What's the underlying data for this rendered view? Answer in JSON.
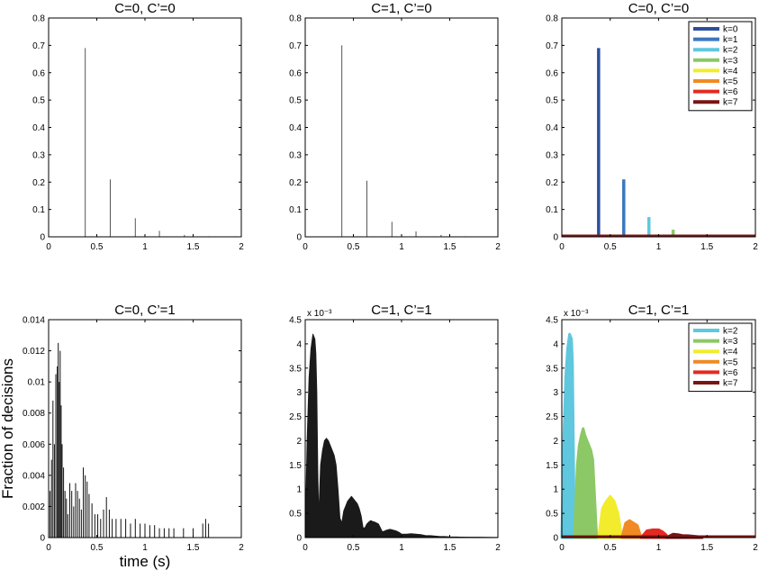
{
  "chart_data": [
    {
      "id": "p1",
      "type": "bar",
      "title": "C=0, C’=0",
      "xlim": [
        0,
        2
      ],
      "ylim": [
        0,
        0.8
      ],
      "xticks": [
        0,
        0.5,
        1,
        1.5,
        2
      ],
      "xtick_labels": [
        "0",
        "0.5",
        "1",
        "1.5",
        "2"
      ],
      "yticks": [
        0,
        0.1,
        0.2,
        0.3,
        0.4,
        0.5,
        0.6,
        0.7,
        0.8
      ],
      "ytick_labels": [
        "0",
        "0.1",
        "0.2",
        "0.3",
        "0.4",
        "0.5",
        "0.6",
        "0.7",
        "0.8"
      ],
      "series": [
        {
          "color": "#555555",
          "x": [
            0.38,
            0.64,
            0.9,
            1.15,
            1.41,
            1.66
          ],
          "values": [
            0.69,
            0.21,
            0.068,
            0.022,
            0.007,
            0.002
          ]
        }
      ]
    },
    {
      "id": "p2",
      "type": "bar",
      "title": "C=1, C’=0",
      "xlim": [
        0,
        2
      ],
      "ylim": [
        0,
        0.8
      ],
      "xticks": [
        0,
        0.5,
        1,
        1.5,
        2
      ],
      "xtick_labels": [
        "0",
        "0.5",
        "1",
        "1.5",
        "2"
      ],
      "yticks": [
        0,
        0.1,
        0.2,
        0.3,
        0.4,
        0.5,
        0.6,
        0.7,
        0.8
      ],
      "ytick_labels": [
        "0",
        "0.1",
        "0.2",
        "0.3",
        "0.4",
        "0.5",
        "0.6",
        "0.7",
        "0.8"
      ],
      "series": [
        {
          "color": "#555555",
          "x": [
            0.38,
            0.64,
            0.9,
            1.15,
            1.41,
            1.66
          ],
          "values": [
            0.7,
            0.205,
            0.055,
            0.02,
            0.007,
            0.002
          ]
        }
      ]
    },
    {
      "id": "p3",
      "type": "bar",
      "title": "C=0, C’=0",
      "xlim": [
        0,
        2
      ],
      "ylim": [
        0,
        0.8
      ],
      "xticks": [
        0,
        0.5,
        1,
        1.5,
        2
      ],
      "xtick_labels": [
        "0",
        "0.5",
        "1",
        "1.5",
        "2"
      ],
      "yticks": [
        0,
        0.1,
        0.2,
        0.3,
        0.4,
        0.5,
        0.6,
        0.7,
        0.8
      ],
      "ytick_labels": [
        "0",
        "0.1",
        "0.2",
        "0.3",
        "0.4",
        "0.5",
        "0.6",
        "0.7",
        "0.8"
      ],
      "legend": "top-right",
      "series": [
        {
          "name": "k=0",
          "color": "#2b4f9e",
          "x": [
            0.38
          ],
          "values": [
            0.69
          ]
        },
        {
          "name": "k=1",
          "color": "#3a78bd",
          "x": [
            0.64
          ],
          "values": [
            0.21
          ]
        },
        {
          "name": "k=2",
          "color": "#5fc7de",
          "x": [
            0.9
          ],
          "values": [
            0.072
          ]
        },
        {
          "name": "k=3",
          "color": "#8cc866",
          "x": [
            1.15
          ],
          "values": [
            0.026
          ]
        },
        {
          "name": "k=4",
          "color": "#f2ec2d",
          "x": [
            1.41
          ],
          "values": [
            0.008
          ]
        },
        {
          "name": "k=5",
          "color": "#f08a24",
          "x": [
            1.66
          ],
          "values": [
            0.003
          ]
        },
        {
          "name": "k=6",
          "color": "#e32a22",
          "x": [
            1.9
          ],
          "values": [
            0.001
          ]
        },
        {
          "name": "k=7",
          "color": "#7a1414",
          "x": [],
          "values": []
        }
      ]
    },
    {
      "id": "p4",
      "type": "bar",
      "title": "C=0, C’=1",
      "xlim": [
        0,
        2
      ],
      "ylim": [
        0,
        0.014
      ],
      "xticks": [
        0,
        0.5,
        1,
        1.5,
        2
      ],
      "xtick_labels": [
        "0",
        "0.5",
        "1",
        "1.5",
        "2"
      ],
      "yticks": [
        0,
        0.002,
        0.004,
        0.006,
        0.008,
        0.01,
        0.012,
        0.014
      ],
      "ytick_labels": [
        "0",
        "0.002",
        "0.004",
        "0.006",
        "0.008",
        "0.01",
        "0.012",
        "0.014"
      ],
      "xlabel": "time (s)",
      "ylabel": "Fraction of decisions",
      "series": [
        {
          "color": "#111111",
          "x": [
            0.0,
            0.015,
            0.03,
            0.045,
            0.06,
            0.075,
            0.09,
            0.1,
            0.11,
            0.12,
            0.13,
            0.14,
            0.155,
            0.17,
            0.185,
            0.2,
            0.22,
            0.24,
            0.26,
            0.28,
            0.3,
            0.32,
            0.34,
            0.36,
            0.38,
            0.4,
            0.42,
            0.45,
            0.48,
            0.51,
            0.54,
            0.57,
            0.6,
            0.63,
            0.66,
            0.7,
            0.75,
            0.8,
            0.85,
            0.9,
            0.95,
            1.0,
            1.05,
            1.1,
            1.15,
            1.2,
            1.25,
            1.3,
            1.4,
            1.5,
            1.6,
            1.63,
            1.66
          ],
          "values": [
            0.001,
            0.003,
            0.005,
            0.0088,
            0.006,
            0.0105,
            0.011,
            0.0125,
            0.01,
            0.012,
            0.0085,
            0.006,
            0.0045,
            0.003,
            0.0025,
            0.0015,
            0.0035,
            0.003,
            0.002,
            0.0035,
            0.003,
            0.0025,
            0.0018,
            0.0045,
            0.004,
            0.0036,
            0.0028,
            0.0022,
            0.0015,
            0.0015,
            0.0012,
            0.0018,
            0.0026,
            0.0018,
            0.0012,
            0.0012,
            0.0012,
            0.0012,
            0.0009,
            0.0012,
            0.0009,
            0.0009,
            0.0008,
            0.0008,
            0.0006,
            0.0006,
            0.0006,
            0.0006,
            0.0006,
            0.0006,
            0.0009,
            0.0012,
            0.0009
          ]
        }
      ]
    },
    {
      "id": "p5",
      "type": "area",
      "title": "C=1, C’=1",
      "exponent_label": "x 10⁻³",
      "xlim": [
        0,
        2
      ],
      "ylim": [
        0,
        4.5
      ],
      "xticks": [
        0,
        0.5,
        1,
        1.5,
        2
      ],
      "xtick_labels": [
        "0",
        "0.5",
        "1",
        "1.5",
        "2"
      ],
      "yticks": [
        0,
        0.5,
        1,
        1.5,
        2,
        2.5,
        3,
        3.5,
        4,
        4.5
      ],
      "ytick_labels": [
        "0",
        "0.5",
        "1",
        "1.5",
        "2",
        "2.5",
        "3",
        "3.5",
        "4",
        "4.5"
      ],
      "series": [
        {
          "color": "#1a1a1a",
          "x": [
            0,
            0.02,
            0.04,
            0.06,
            0.08,
            0.1,
            0.11,
            0.12,
            0.13,
            0.14,
            0.16,
            0.18,
            0.2,
            0.22,
            0.24,
            0.26,
            0.28,
            0.3,
            0.32,
            0.34,
            0.36,
            0.38,
            0.4,
            0.42,
            0.44,
            0.46,
            0.48,
            0.5,
            0.52,
            0.54,
            0.56,
            0.58,
            0.6,
            0.62,
            0.64,
            0.66,
            0.68,
            0.7,
            0.72,
            0.74,
            0.76,
            0.78,
            0.8,
            0.82,
            0.84,
            0.86,
            0.88,
            0.9,
            0.92,
            0.94,
            0.96,
            0.98,
            1.0,
            1.05,
            1.1,
            1.15,
            1.2,
            1.25,
            1.3,
            1.35,
            1.4,
            1.45,
            1.5,
            1.6,
            1.7,
            1.8,
            1.9,
            2.0
          ],
          "values": [
            0,
            2.0,
            3.3,
            3.9,
            4.2,
            4.1,
            3.8,
            3.0,
            1.4,
            0.4,
            1.5,
            1.8,
            2.0,
            2.05,
            2.0,
            1.9,
            1.8,
            1.7,
            1.5,
            1.0,
            0.4,
            0.3,
            0.55,
            0.65,
            0.75,
            0.8,
            0.85,
            0.8,
            0.75,
            0.7,
            0.6,
            0.45,
            0.2,
            0.2,
            0.28,
            0.32,
            0.35,
            0.33,
            0.32,
            0.3,
            0.28,
            0.2,
            0.12,
            0.13,
            0.15,
            0.16,
            0.17,
            0.16,
            0.15,
            0.14,
            0.12,
            0.1,
            0.07,
            0.07,
            0.08,
            0.07,
            0.06,
            0.04,
            0.04,
            0.03,
            0.02,
            0.02,
            0.015,
            0.01,
            0.008,
            0.006,
            0.004,
            0.002
          ]
        }
      ]
    },
    {
      "id": "p6",
      "type": "area",
      "title": "C=1, C’=1",
      "exponent_label": "x 10⁻³",
      "xlim": [
        0,
        2
      ],
      "ylim": [
        0,
        4.5
      ],
      "xticks": [
        0,
        0.5,
        1,
        1.5,
        2
      ],
      "xtick_labels": [
        "0",
        "0.5",
        "1",
        "1.5",
        "2"
      ],
      "yticks": [
        0,
        0.5,
        1,
        1.5,
        2,
        2.5,
        3,
        3.5,
        4,
        4.5
      ],
      "ytick_labels": [
        "0",
        "0.5",
        "1",
        "1.5",
        "2",
        "2.5",
        "3",
        "3.5",
        "4",
        "4.5"
      ],
      "legend": "top-right",
      "series": [
        {
          "name": "k=2",
          "color": "#5fc7de",
          "x": [
            0,
            0.02,
            0.04,
            0.06,
            0.08,
            0.1,
            0.11,
            0.12,
            0.13
          ],
          "values": [
            0,
            2.0,
            3.3,
            3.9,
            4.2,
            4.1,
            3.6,
            1.8,
            0
          ]
        },
        {
          "name": "k=3",
          "color": "#8cc866",
          "x": [
            0.13,
            0.16,
            0.18,
            0.2,
            0.22,
            0.24,
            0.26,
            0.28,
            0.3,
            0.32,
            0.34,
            0.36
          ],
          "values": [
            0,
            1.5,
            1.9,
            2.1,
            2.25,
            2.1,
            2.0,
            1.9,
            1.8,
            1.6,
            0.8,
            0
          ]
        },
        {
          "name": "k=4",
          "color": "#f2ec2d",
          "x": [
            0.38,
            0.42,
            0.46,
            0.5,
            0.54,
            0.58,
            0.6,
            0.62
          ],
          "values": [
            0,
            0.6,
            0.75,
            0.85,
            0.75,
            0.5,
            0.25,
            0
          ]
        },
        {
          "name": "k=5",
          "color": "#f08a24",
          "x": [
            0.62,
            0.66,
            0.7,
            0.74,
            0.78,
            0.8,
            0.82
          ],
          "values": [
            0,
            0.3,
            0.35,
            0.3,
            0.25,
            0.12,
            0
          ]
        },
        {
          "name": "k=6",
          "color": "#e32a22",
          "x": [
            0.82,
            0.88,
            0.94,
            1.0,
            1.04,
            1.08
          ],
          "values": [
            0,
            0.14,
            0.16,
            0.16,
            0.12,
            0.05
          ]
        },
        {
          "name": "k=7",
          "color": "#7a1414",
          "x": [
            1.08,
            1.15,
            1.2,
            1.25,
            1.3,
            1.35,
            1.4,
            1.45
          ],
          "values": [
            0,
            0.07,
            0.06,
            0.04,
            0.04,
            0.03,
            0.02,
            0.01
          ]
        }
      ]
    }
  ]
}
